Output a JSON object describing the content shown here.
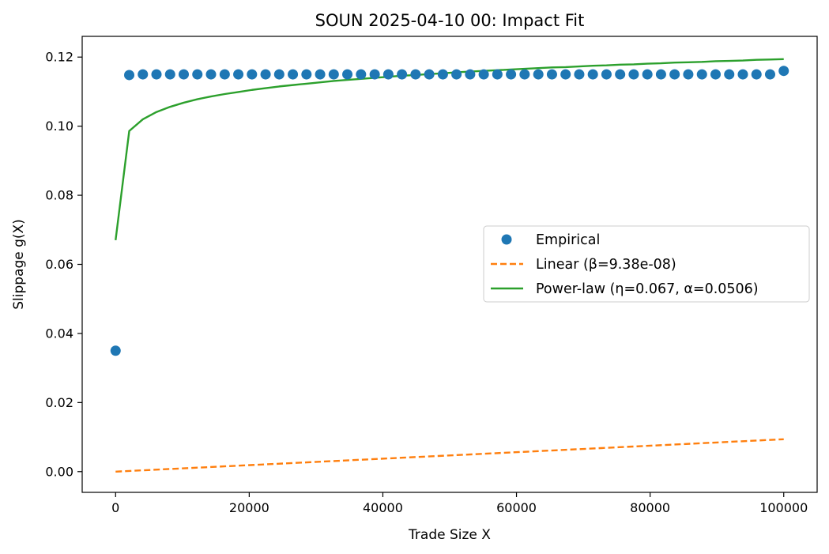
{
  "chart_data": {
    "type": "scatter",
    "title": "SOUN 2025-04-10 00: Impact Fit",
    "xlabel": "Trade Size X",
    "ylabel": "Slippage g(X)",
    "xlim": [
      -5000,
      105000
    ],
    "ylim": [
      -0.006,
      0.126
    ],
    "xticks": [
      0,
      20000,
      40000,
      60000,
      80000,
      100000
    ],
    "xtick_labels": [
      "0",
      "20000",
      "40000",
      "60000",
      "80000",
      "100000"
    ],
    "yticks": [
      0.0,
      0.02,
      0.04,
      0.06,
      0.08,
      0.1,
      0.12
    ],
    "ytick_labels": [
      "0.00",
      "0.02",
      "0.04",
      "0.06",
      "0.08",
      "0.10",
      "0.12"
    ],
    "grid": false,
    "legend_position": "center-right",
    "series": [
      {
        "name": "Empirical",
        "kind": "scatter",
        "color": "#1f77b4",
        "x": [
          0,
          2040,
          4080,
          6120,
          8160,
          10200,
          12240,
          14280,
          16330,
          18370,
          20410,
          22450,
          24490,
          26530,
          28570,
          30610,
          32650,
          34690,
          36730,
          38780,
          40820,
          42860,
          44900,
          46940,
          48980,
          51020,
          53060,
          55100,
          57140,
          59180,
          61220,
          63270,
          65310,
          67350,
          69390,
          71430,
          73470,
          75510,
          77550,
          79590,
          81630,
          83670,
          85710,
          87760,
          89800,
          91840,
          93880,
          95920,
          97960,
          100000
        ],
        "y": [
          0.035,
          0.1148,
          0.115,
          0.115,
          0.115,
          0.115,
          0.115,
          0.115,
          0.115,
          0.115,
          0.115,
          0.115,
          0.115,
          0.115,
          0.115,
          0.115,
          0.115,
          0.115,
          0.115,
          0.115,
          0.115,
          0.115,
          0.115,
          0.115,
          0.115,
          0.115,
          0.115,
          0.115,
          0.115,
          0.115,
          0.115,
          0.115,
          0.115,
          0.115,
          0.115,
          0.115,
          0.115,
          0.115,
          0.115,
          0.115,
          0.115,
          0.115,
          0.115,
          0.115,
          0.115,
          0.115,
          0.115,
          0.115,
          0.115,
          0.116
        ]
      },
      {
        "name": "Linear (β=9.38e-08)",
        "kind": "line",
        "dash": "dashed",
        "color": "#ff7f0e",
        "x": [
          0,
          100000
        ],
        "y": [
          0.0,
          0.00938
        ]
      },
      {
        "name": "Power-law (η=0.067, α=0.0506)",
        "kind": "line",
        "color": "#2ca02c",
        "x": [
          0,
          2040,
          4080,
          6120,
          8160,
          10200,
          12240,
          14280,
          16330,
          18370,
          20410,
          22450,
          24490,
          26530,
          28570,
          30610,
          32650,
          34690,
          36730,
          38780,
          40820,
          42860,
          44900,
          46940,
          48980,
          51020,
          53060,
          55100,
          57140,
          59180,
          61220,
          63270,
          65310,
          67350,
          69390,
          71430,
          73470,
          75510,
          77550,
          79590,
          81630,
          83670,
          85710,
          87760,
          89800,
          91840,
          93880,
          95920,
          97960,
          100000
        ],
        "y": [
          0.067,
          0.0986,
          0.102,
          0.1041,
          0.1056,
          0.1068,
          0.1078,
          0.1086,
          0.1093,
          0.1099,
          0.1105,
          0.111,
          0.1115,
          0.1119,
          0.1123,
          0.1127,
          0.1131,
          0.1134,
          0.1137,
          0.114,
          0.1143,
          0.1146,
          0.1148,
          0.1151,
          0.1153,
          0.1156,
          0.1158,
          0.116,
          0.1162,
          0.1164,
          0.1166,
          0.1168,
          0.117,
          0.1171,
          0.1173,
          0.1175,
          0.1176,
          0.1178,
          0.1179,
          0.1181,
          0.1182,
          0.1184,
          0.1185,
          0.1186,
          0.1188,
          0.1189,
          0.119,
          0.1192,
          0.1193,
          0.1194
        ]
      }
    ]
  }
}
